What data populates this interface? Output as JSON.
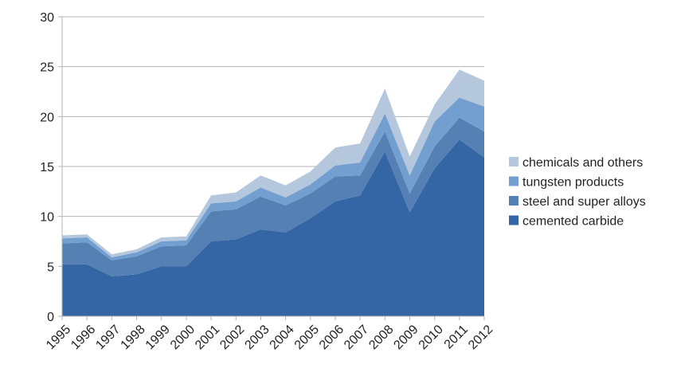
{
  "chart_data": {
    "type": "area",
    "stacked": true,
    "x": [
      "1995",
      "1996",
      "1997",
      "1998",
      "1999",
      "2000",
      "2001",
      "2002",
      "2003",
      "2004",
      "2005",
      "2006",
      "2007",
      "2008",
      "2009",
      "2010",
      "2011",
      "2012"
    ],
    "ylim": [
      0,
      30
    ],
    "yticks": [
      0,
      5,
      10,
      15,
      20,
      25,
      30
    ],
    "grid": "horizontal",
    "legend_position": "right",
    "series": [
      {
        "name": "cemented carbide",
        "color": "#3465a4",
        "values": [
          5.2,
          5.2,
          4.0,
          4.2,
          5.0,
          5.0,
          7.5,
          7.7,
          8.7,
          8.4,
          9.8,
          11.5,
          12.1,
          16.5,
          10.4,
          14.8,
          17.7,
          15.9
        ]
      },
      {
        "name": "steel and super alloys",
        "color": "#5480b3",
        "values": [
          2.1,
          2.2,
          1.6,
          1.8,
          2.0,
          2.1,
          3.0,
          3.0,
          3.3,
          2.7,
          2.5,
          2.5,
          2.0,
          2.0,
          1.9,
          2.2,
          2.2,
          2.6
        ]
      },
      {
        "name": "tungsten products",
        "color": "#729fcf",
        "values": [
          0.5,
          0.5,
          0.3,
          0.4,
          0.5,
          0.5,
          0.8,
          0.8,
          0.9,
          0.8,
          0.9,
          1.1,
          1.3,
          1.8,
          1.8,
          2.5,
          2.0,
          2.5
        ]
      },
      {
        "name": "chemicals and others",
        "color": "#b4c7dc",
        "values": [
          0.3,
          0.3,
          0.3,
          0.3,
          0.4,
          0.4,
          0.8,
          0.9,
          1.2,
          1.2,
          1.3,
          1.8,
          1.9,
          2.5,
          1.9,
          1.7,
          2.8,
          2.6
        ]
      }
    ]
  }
}
